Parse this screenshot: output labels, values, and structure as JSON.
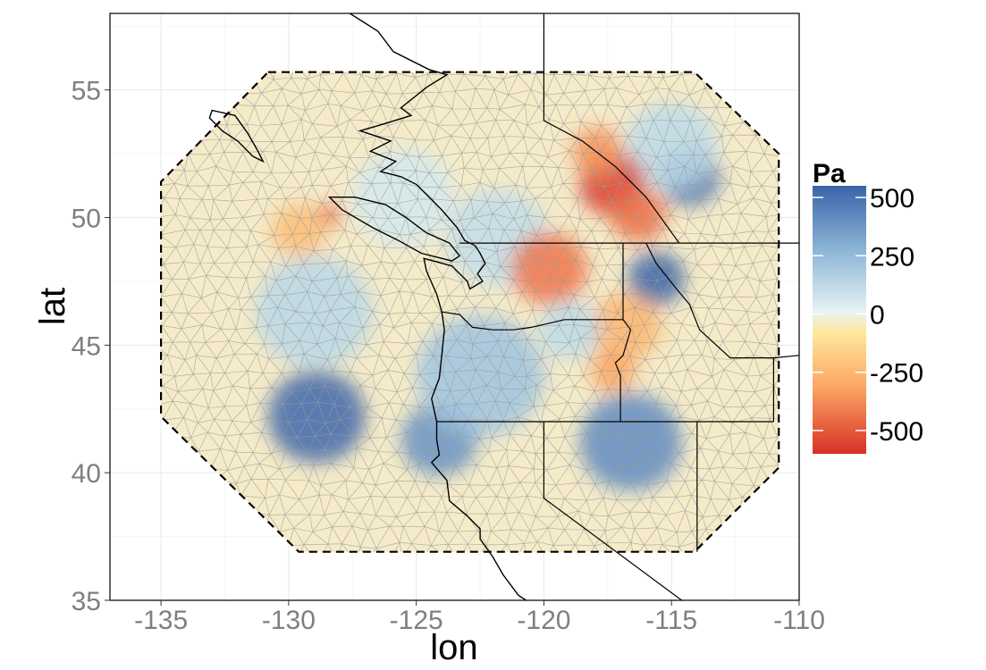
{
  "chart_data": {
    "type": "heatmap",
    "title": "",
    "xlabel": "lon",
    "ylabel": "lat",
    "xlim": [
      -137,
      -110
    ],
    "ylim": [
      35,
      58
    ],
    "x_ticks": [
      -135,
      -130,
      -125,
      -120,
      -115,
      -110
    ],
    "x_tick_labels": [
      "-135",
      "-130",
      "-125",
      "-120",
      "-115",
      "-110"
    ],
    "y_ticks": [
      35,
      40,
      45,
      50,
      55
    ],
    "y_tick_labels": [
      "35",
      "40",
      "45",
      "50",
      "55"
    ],
    "grid": true,
    "colorbar": {
      "title": "Pa",
      "range": [
        -600,
        550
      ],
      "ticks": [
        500,
        250,
        0,
        -250,
        -500
      ],
      "tick_labels": [
        "500",
        "250",
        "0",
        "-250",
        "-500"
      ],
      "colors": {
        "low": "#d73027",
        "mid_low": "#fdae61",
        "mid": "#fef7c9",
        "mid_high": "#c6e3ef",
        "high": "#3a64a8"
      },
      "placement": "right"
    },
    "domain_boundary": {
      "style": "dashed",
      "vertices": [
        [
          -130.8,
          55.7
        ],
        [
          -114.1,
          55.7
        ],
        [
          -110.8,
          52.5
        ],
        [
          -110.8,
          40.2
        ],
        [
          -114.1,
          36.9
        ],
        [
          -129.6,
          36.9
        ],
        [
          -135.0,
          42.2
        ],
        [
          -135.0,
          51.4
        ]
      ]
    },
    "anomalies": [
      {
        "lon": -128.9,
        "lat": 42.2,
        "value": 540,
        "radius": 1.9
      },
      {
        "lon": -124.1,
        "lat": 41.3,
        "value": 380,
        "radius": 1.5
      },
      {
        "lon": -122.5,
        "lat": 43.8,
        "value": 230,
        "radius": 2.5
      },
      {
        "lon": -116.6,
        "lat": 41.2,
        "value": 400,
        "radius": 2.0
      },
      {
        "lon": -129.0,
        "lat": 46.3,
        "value": 170,
        "radius": 2.3
      },
      {
        "lon": -114.3,
        "lat": 51.6,
        "value": 490,
        "radius": 1.2
      },
      {
        "lon": -115.6,
        "lat": 47.6,
        "value": 560,
        "radius": 1.1
      },
      {
        "lon": -115.0,
        "lat": 52.8,
        "value": 160,
        "radius": 1.8
      },
      {
        "lon": -121.8,
        "lat": 49.2,
        "value": 150,
        "radius": 2.0
      },
      {
        "lon": -125.5,
        "lat": 50.8,
        "value": 110,
        "radius": 2.0
      },
      {
        "lon": -117.3,
        "lat": 51.3,
        "value": -560,
        "radius": 1.3
      },
      {
        "lon": -116.3,
        "lat": 50.1,
        "value": -400,
        "radius": 1.1
      },
      {
        "lon": -117.9,
        "lat": 52.6,
        "value": -300,
        "radius": 1.0
      },
      {
        "lon": -119.8,
        "lat": 48.0,
        "value": -380,
        "radius": 1.5
      },
      {
        "lon": -128.4,
        "lat": 50.1,
        "value": -450,
        "radius": 0.45
      },
      {
        "lon": -129.6,
        "lat": 49.5,
        "value": -190,
        "radius": 1.1
      },
      {
        "lon": -116.8,
        "lat": 45.7,
        "value": -210,
        "radius": 1.4
      },
      {
        "lon": -117.3,
        "lat": 44.0,
        "value": -250,
        "radius": 0.9
      },
      {
        "lon": -119.0,
        "lat": 45.6,
        "value": 160,
        "radius": 1.2
      }
    ],
    "coastline": [
      [
        -127.6,
        58.0
      ],
      [
        -126.5,
        57.3
      ],
      [
        -125.9,
        56.5
      ],
      [
        -124.5,
        55.8
      ],
      [
        -123.8,
        55.6
      ],
      [
        -124.6,
        55.1
      ],
      [
        -125.6,
        54.3
      ],
      [
        -125.2,
        54.0
      ],
      [
        -126.5,
        53.6
      ],
      [
        -127.2,
        53.4
      ],
      [
        -126.0,
        53.0
      ],
      [
        -126.8,
        52.6
      ],
      [
        -125.8,
        52.2
      ],
      [
        -126.4,
        51.8
      ],
      [
        -125.6,
        51.6
      ],
      [
        -125.0,
        51.3
      ],
      [
        -124.4,
        50.7
      ],
      [
        -124.0,
        50.3
      ],
      [
        -123.4,
        49.6
      ],
      [
        -123.1,
        49.1
      ],
      [
        -122.7,
        48.9
      ],
      [
        -122.5,
        48.6
      ],
      [
        -122.3,
        48.2
      ],
      [
        -122.6,
        47.8
      ],
      [
        -122.4,
        47.5
      ],
      [
        -122.9,
        47.2
      ],
      [
        -123.0,
        47.5
      ],
      [
        -123.6,
        48.1
      ],
      [
        -124.7,
        48.4
      ],
      [
        -124.6,
        47.9
      ],
      [
        -124.2,
        47.0
      ],
      [
        -124.0,
        46.3
      ],
      [
        -123.9,
        45.6
      ],
      [
        -124.0,
        44.6
      ],
      [
        -124.1,
        43.7
      ],
      [
        -124.4,
        42.9
      ],
      [
        -124.2,
        42.0
      ],
      [
        -124.2,
        41.3
      ],
      [
        -124.1,
        40.7
      ],
      [
        -124.4,
        40.4
      ],
      [
        -123.8,
        39.7
      ],
      [
        -123.7,
        38.9
      ],
      [
        -123.0,
        38.3
      ],
      [
        -122.5,
        37.8
      ],
      [
        -122.5,
        37.4
      ],
      [
        -122.0,
        36.7
      ],
      [
        -121.6,
        36.0
      ],
      [
        -121.0,
        35.2
      ],
      [
        -120.7,
        35.0
      ]
    ],
    "vancouver_island": [
      [
        -128.4,
        50.8
      ],
      [
        -127.9,
        50.3
      ],
      [
        -126.7,
        49.6
      ],
      [
        -125.7,
        49.1
      ],
      [
        -124.8,
        48.6
      ],
      [
        -123.6,
        48.3
      ],
      [
        -123.3,
        48.5
      ],
      [
        -123.7,
        49.0
      ],
      [
        -124.6,
        49.4
      ],
      [
        -125.4,
        50.0
      ],
      [
        -126.2,
        50.5
      ],
      [
        -127.4,
        50.8
      ],
      [
        -128.4,
        50.8
      ]
    ],
    "haida_gwaii": [
      [
        -133.0,
        54.2
      ],
      [
        -132.1,
        54.0
      ],
      [
        -131.6,
        53.3
      ],
      [
        -131.2,
        52.6
      ],
      [
        -131.0,
        52.2
      ],
      [
        -131.4,
        52.4
      ],
      [
        -132.0,
        53.0
      ],
      [
        -132.6,
        53.4
      ],
      [
        -133.1,
        53.9
      ],
      [
        -133.0,
        54.2
      ]
    ],
    "borders": [
      [
        [
          -120.0,
          58.0
        ],
        [
          -120.0,
          53.8
        ],
        [
          -118.5,
          53.0
        ],
        [
          -117.2,
          52.0
        ],
        [
          -116.0,
          50.8
        ],
        [
          -114.7,
          49.0
        ]
      ],
      [
        [
          -123.3,
          49.0
        ],
        [
          -110.0,
          49.0
        ]
      ],
      [
        [
          -116.9,
          49.0
        ],
        [
          -116.9,
          46.0
        ],
        [
          -116.6,
          45.6
        ],
        [
          -116.9,
          44.6
        ],
        [
          -117.2,
          44.3
        ],
        [
          -117.0,
          43.8
        ],
        [
          -117.0,
          42.0
        ]
      ],
      [
        [
          -116.9,
          46.0
        ],
        [
          -119.2,
          46.0
        ],
        [
          -119.6,
          45.9
        ],
        [
          -120.5,
          45.7
        ],
        [
          -121.2,
          45.6
        ],
        [
          -122.0,
          45.6
        ],
        [
          -122.8,
          45.7
        ],
        [
          -123.3,
          46.2
        ],
        [
          -124.0,
          46.3
        ]
      ],
      [
        [
          -124.2,
          42.0
        ],
        [
          -111.0,
          42.0
        ]
      ],
      [
        [
          -120.0,
          42.0
        ],
        [
          -120.0,
          39.0
        ],
        [
          -114.6,
          35.0
        ]
      ],
      [
        [
          -114.0,
          42.0
        ],
        [
          -114.0,
          36.9
        ]
      ],
      [
        [
          -111.0,
          42.0
        ],
        [
          -111.0,
          44.5
        ],
        [
          -110.0,
          44.6
        ]
      ],
      [
        [
          -116.0,
          49.0
        ],
        [
          -115.6,
          48.2
        ],
        [
          -114.8,
          47.2
        ],
        [
          -114.3,
          46.6
        ],
        [
          -113.9,
          45.6
        ],
        [
          -112.7,
          44.5
        ],
        [
          -111.0,
          44.5
        ]
      ]
    ]
  }
}
